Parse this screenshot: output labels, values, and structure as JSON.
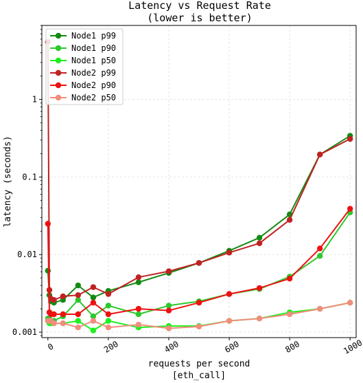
{
  "chart_data": {
    "type": "line",
    "title_line1": "Latency vs Request Rate",
    "title_line2": "(lower is better)",
    "xlabel_line1": "requests per second",
    "xlabel_line2": "[eth_call]",
    "ylabel": "latency (seconds)",
    "y_scale": "log",
    "xlim": [
      -20,
      1020
    ],
    "ylim": [
      0.00085,
      9
    ],
    "x_ticks": [
      0,
      200,
      400,
      600,
      800,
      1000
    ],
    "x_tick_labels": [
      "0",
      "200",
      "400",
      "600",
      "800",
      "1000"
    ],
    "y_ticks": [
      0.001,
      0.01,
      0.1,
      1
    ],
    "y_tick_labels": [
      "0.001",
      "0.01",
      "0.1",
      "1"
    ],
    "grid": true,
    "legend_position": "top-left",
    "series": [
      {
        "name": "Node1 p99",
        "color": "#138a13",
        "points": [
          [
            0,
            0.0062
          ],
          [
            5,
            0.003
          ],
          [
            10,
            0.0025
          ],
          [
            20,
            0.0024
          ],
          [
            50,
            0.0026
          ],
          [
            100,
            0.004
          ],
          [
            150,
            0.0028
          ],
          [
            200,
            0.0034
          ],
          [
            300,
            0.0044
          ],
          [
            400,
            0.0058
          ],
          [
            500,
            0.0078
          ],
          [
            600,
            0.0112
          ],
          [
            700,
            0.0165
          ],
          [
            800,
            0.033
          ],
          [
            900,
            0.195
          ],
          [
            1000,
            0.34
          ]
        ]
      },
      {
        "name": "Node1 p90",
        "color": "#2dc82d",
        "points": [
          [
            0,
            0.0015
          ],
          [
            5,
            0.0015
          ],
          [
            10,
            0.0014
          ],
          [
            20,
            0.0014
          ],
          [
            50,
            0.0016
          ],
          [
            100,
            0.0026
          ],
          [
            150,
            0.0016
          ],
          [
            200,
            0.0022
          ],
          [
            300,
            0.0017
          ],
          [
            400,
            0.0022
          ],
          [
            500,
            0.0025
          ],
          [
            600,
            0.0031
          ],
          [
            700,
            0.0036
          ],
          [
            800,
            0.0052
          ],
          [
            900,
            0.0096
          ],
          [
            1000,
            0.035
          ]
        ]
      },
      {
        "name": "Node1 p50",
        "color": "#1ef01e",
        "points": [
          [
            0,
            0.0014
          ],
          [
            5,
            0.0013
          ],
          [
            10,
            0.0013
          ],
          [
            20,
            0.0013
          ],
          [
            50,
            0.0013
          ],
          [
            100,
            0.0014
          ],
          [
            150,
            0.00105
          ],
          [
            200,
            0.0014
          ],
          [
            300,
            0.00115
          ],
          [
            400,
            0.0012
          ],
          [
            500,
            0.0012
          ],
          [
            600,
            0.0014
          ],
          [
            700,
            0.0015
          ],
          [
            800,
            0.0018
          ],
          [
            900,
            0.002
          ],
          [
            1000,
            0.0024
          ]
        ]
      },
      {
        "name": "Node2 p99",
        "color": "#c02222",
        "points": [
          [
            0,
            5.5
          ],
          [
            5,
            0.0035
          ],
          [
            10,
            0.0027
          ],
          [
            20,
            0.0026
          ],
          [
            50,
            0.0029
          ],
          [
            100,
            0.003
          ],
          [
            150,
            0.0038
          ],
          [
            200,
            0.0031
          ],
          [
            300,
            0.0051
          ],
          [
            400,
            0.0061
          ],
          [
            500,
            0.0078
          ],
          [
            600,
            0.0106
          ],
          [
            700,
            0.014
          ],
          [
            800,
            0.028
          ],
          [
            900,
            0.195
          ],
          [
            1000,
            0.31
          ]
        ]
      },
      {
        "name": "Node2 p90",
        "color": "#ee1111",
        "points": [
          [
            0,
            0.025
          ],
          [
            5,
            0.0018
          ],
          [
            10,
            0.0017
          ],
          [
            20,
            0.0017
          ],
          [
            50,
            0.0017
          ],
          [
            100,
            0.0017
          ],
          [
            150,
            0.0024
          ],
          [
            200,
            0.0017
          ],
          [
            300,
            0.002
          ],
          [
            400,
            0.0019
          ],
          [
            500,
            0.0024
          ],
          [
            600,
            0.0031
          ],
          [
            700,
            0.0037
          ],
          [
            800,
            0.0049
          ],
          [
            900,
            0.012
          ],
          [
            1000,
            0.039
          ]
        ]
      },
      {
        "name": "Node2 p50",
        "color": "#f28c7c",
        "points": [
          [
            0,
            0.0014
          ],
          [
            5,
            0.0014
          ],
          [
            10,
            0.0014
          ],
          [
            20,
            0.0013
          ],
          [
            50,
            0.0013
          ],
          [
            100,
            0.00115
          ],
          [
            150,
            0.0014
          ],
          [
            200,
            0.00115
          ],
          [
            300,
            0.00125
          ],
          [
            400,
            0.00112
          ],
          [
            500,
            0.00118
          ],
          [
            600,
            0.0014
          ],
          [
            700,
            0.0015
          ],
          [
            800,
            0.0017
          ],
          [
            900,
            0.002
          ],
          [
            1000,
            0.0024
          ]
        ]
      }
    ]
  }
}
